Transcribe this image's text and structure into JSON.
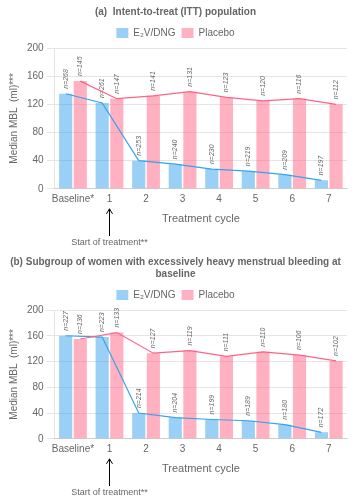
{
  "chart_data": [
    {
      "type": "bar",
      "title": "(a)  Intent-to-treat (ITT) population",
      "categories": [
        "Baseline*",
        "1",
        "2",
        "3",
        "4",
        "5",
        "6",
        "7"
      ],
      "series": [
        {
          "name": "E₂V/DNG",
          "values": [
            135,
            122,
            40,
            35,
            28,
            25,
            20,
            12
          ],
          "n_labels": [
            "n=268",
            "n=261",
            "n=253",
            "n=240",
            "n=230",
            "n=219",
            "n=209",
            "n=197"
          ],
          "line_style": "solid"
        },
        {
          "name": "Placebo",
          "values": [
            153,
            128,
            132,
            138,
            130,
            125,
            128,
            120
          ],
          "n_labels": [
            "n=145",
            "n=147",
            "n=141",
            "n=131",
            "n=123",
            "n=120",
            "n=116",
            "n=112"
          ],
          "line_style": "solid"
        }
      ],
      "xlabel": "Treatment cycle",
      "ylabel": "Median MBL  (ml)***",
      "ylim": [
        0,
        200
      ],
      "yticks": [
        0,
        40,
        80,
        120,
        160,
        200
      ],
      "grid": true,
      "legend": "top",
      "annotations": [
        {
          "text": "Start of treatment**",
          "category": "1"
        }
      ]
    },
    {
      "type": "bar",
      "title": "(b) Subgroup of women with excessively heavy menstrual bleeding at baseline",
      "categories": [
        "Baseline*",
        "1",
        "2",
        "3",
        "4",
        "5",
        "6",
        "7"
      ],
      "series": [
        {
          "name": "E₂V/DNG",
          "values": [
            160,
            158,
            40,
            33,
            30,
            28,
            22,
            10
          ],
          "n_labels": [
            "n=227",
            "n=223",
            "n=214",
            "n=204",
            "n=199",
            "n=189",
            "n=180",
            "n=172"
          ],
          "line_style": "solid"
        },
        {
          "name": "Placebo",
          "values": [
            155,
            165,
            133,
            137,
            128,
            135,
            130,
            121
          ],
          "n_labels": [
            "n=136",
            "n=133",
            "n=127",
            "n=119",
            "n=111",
            "n=110",
            "n=106",
            "n=102"
          ],
          "line_style": "solid"
        }
      ],
      "xlabel": "Treatment cycle",
      "ylabel": "Median MBL  (ml)***",
      "ylim": [
        0,
        200
      ],
      "yticks": [
        0,
        40,
        80,
        120,
        160,
        200
      ],
      "grid": true,
      "legend": "top",
      "annotations": [
        {
          "text": "Start of treatment**",
          "category": "1"
        }
      ]
    }
  ]
}
